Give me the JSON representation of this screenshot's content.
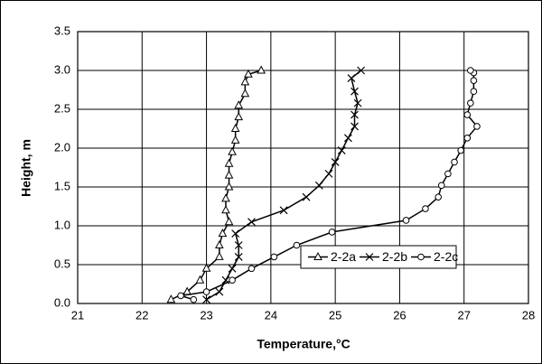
{
  "chart_data": {
    "type": "line",
    "x_label": "Temperature,°C",
    "y_label": "Height, m",
    "xlim": [
      21,
      28
    ],
    "xticks": [
      21,
      22,
      23,
      24,
      25,
      26,
      27,
      28
    ],
    "ylim": [
      0,
      3.5
    ],
    "yticks": [
      {
        "value": 0,
        "label": "0.0"
      },
      {
        "value": 0.5,
        "label": "0.5"
      },
      {
        "value": 1,
        "label": "1.0"
      },
      {
        "value": 1.5,
        "label": "1.5"
      },
      {
        "value": 2,
        "label": "2.0"
      },
      {
        "value": 2.5,
        "label": "2.5"
      },
      {
        "value": 3,
        "label": "3.0"
      },
      {
        "value": 3.5,
        "label": "3.5"
      }
    ],
    "grid": true,
    "legend": "right",
    "series": [
      {
        "name": "2-2a",
        "color": "#000000",
        "marker": "triangle",
        "x": [
          22.45,
          22.7,
          22.9,
          23.0,
          23.2,
          23.2,
          23.25,
          23.35,
          23.3,
          23.3,
          23.35,
          23.35,
          23.35,
          23.4,
          23.45,
          23.45,
          23.5,
          23.5,
          23.6,
          23.6,
          23.65,
          23.85
        ],
        "values": [
          0.05,
          0.15,
          0.3,
          0.45,
          0.6,
          0.75,
          0.9,
          1.05,
          1.2,
          1.35,
          1.5,
          1.65,
          1.8,
          1.95,
          2.1,
          2.25,
          2.4,
          2.55,
          2.7,
          2.85,
          2.95,
          3.0
        ]
      },
      {
        "name": "2-2b",
        "color": "#000000",
        "marker": "cross",
        "x": [
          23.0,
          23.2,
          23.3,
          23.4,
          23.5,
          23.5,
          23.45,
          23.7,
          24.2,
          24.55,
          24.75,
          24.9,
          25.0,
          25.1,
          25.2,
          25.3,
          25.3,
          25.35,
          25.3,
          25.25,
          25.4
        ],
        "values": [
          0.05,
          0.15,
          0.3,
          0.45,
          0.6,
          0.75,
          0.9,
          1.05,
          1.2,
          1.37,
          1.52,
          1.67,
          1.82,
          1.97,
          2.13,
          2.28,
          2.43,
          2.58,
          2.73,
          2.9,
          3.0
        ]
      },
      {
        "name": "2-2c",
        "color": "#000000",
        "marker": "circle",
        "x": [
          22.8,
          22.6,
          23.0,
          23.4,
          23.7,
          24.05,
          24.4,
          24.95,
          26.1,
          26.4,
          26.6,
          26.65,
          26.75,
          26.85,
          26.95,
          27.05,
          27.2,
          27.05,
          27.1,
          27.15,
          27.15,
          27.15,
          27.1
        ],
        "values": [
          0.05,
          0.1,
          0.15,
          0.3,
          0.45,
          0.6,
          0.75,
          0.92,
          1.07,
          1.22,
          1.37,
          1.52,
          1.67,
          1.82,
          1.97,
          2.13,
          2.28,
          2.43,
          2.58,
          2.73,
          2.87,
          2.97,
          3.0
        ]
      }
    ]
  }
}
